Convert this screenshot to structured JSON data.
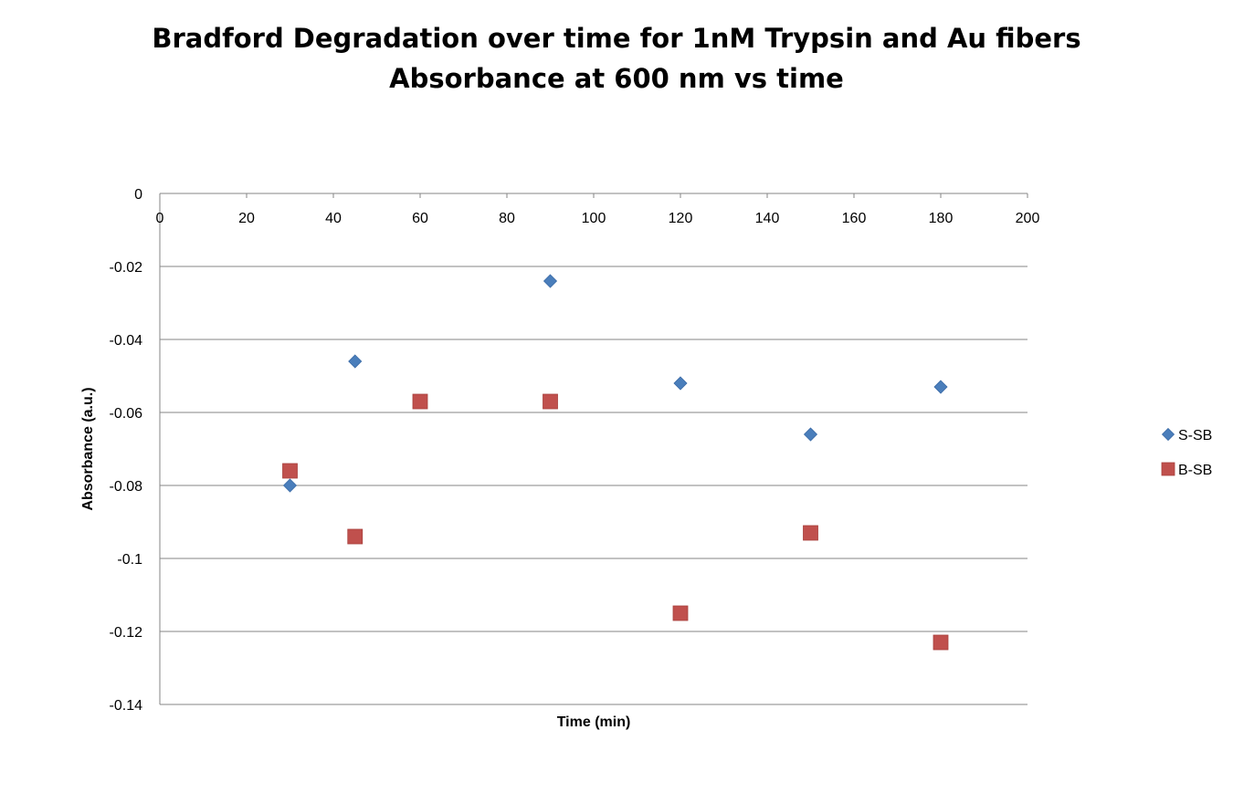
{
  "chart_data": {
    "type": "scatter",
    "title": "Bradford Degradation over time for 1nM Trypsin and Au fibers",
    "subtitle": "Absorbance at 600 nm vs time",
    "xlabel": "Time (min)",
    "ylabel": "Absorbance (a.u.)",
    "xlim": [
      0,
      200
    ],
    "ylim": [
      -0.14,
      0
    ],
    "x_ticks": [
      "0",
      "20",
      "40",
      "60",
      "80",
      "100",
      "120",
      "140",
      "160",
      "180",
      "200"
    ],
    "y_ticks": [
      "0",
      "-0.02",
      "-0.04",
      "-0.06",
      "-0.08",
      "-0.1",
      "-0.12",
      "-0.14"
    ],
    "grid": "horizontal",
    "legend_position": "right",
    "series": [
      {
        "name": "S-SB",
        "marker": "diamond",
        "color": "#4a7ebb",
        "x": [
          30,
          45,
          90,
          120,
          150,
          180
        ],
        "y": [
          -0.08,
          -0.046,
          -0.024,
          -0.052,
          -0.066,
          -0.053
        ]
      },
      {
        "name": "B-SB",
        "marker": "square",
        "color": "#c0504d",
        "x": [
          30,
          45,
          60,
          90,
          120,
          150,
          180
        ],
        "y": [
          -0.076,
          -0.094,
          -0.057,
          -0.057,
          -0.115,
          -0.093,
          -0.123
        ]
      }
    ]
  }
}
